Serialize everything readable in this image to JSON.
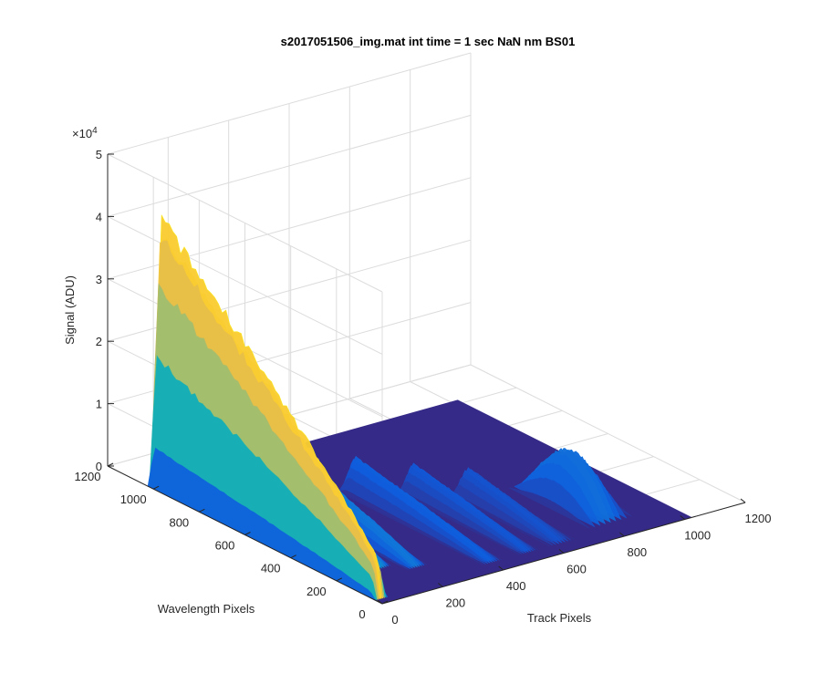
{
  "chart_data": {
    "type": "surface",
    "title": "s2017051506_img.mat int time = 1 sec  NaN nm BS01",
    "xlabel": "Track Pixels",
    "ylabel": "Wavelength Pixels",
    "zlabel": "Signal (ADU)",
    "z_exponent_label": "×10",
    "z_exponent_power": "4",
    "xlim": [
      0,
      1200
    ],
    "ylim": [
      0,
      1200
    ],
    "zlim": [
      0,
      50000
    ],
    "x_ticks": [
      "0",
      "200",
      "400",
      "600",
      "800",
      "1000",
      "1200"
    ],
    "y_ticks": [
      "0",
      "200",
      "400",
      "600",
      "800",
      "1000",
      "1200"
    ],
    "z_ticks": [
      "0",
      "1",
      "2",
      "3",
      "4",
      "5"
    ],
    "grid": true,
    "colormap": "parula",
    "surface_extent": {
      "x": [
        0,
        1024
      ],
      "y": [
        0,
        1024
      ]
    },
    "features": [
      {
        "name": "high-wall",
        "x_range": [
          0,
          40
        ],
        "y_range": [
          30,
          1024
        ],
        "peak_at_y": 1000,
        "peak_z": 43000,
        "end_z": 5000
      },
      {
        "name": "inner-ridge",
        "x_range": [
          40,
          110
        ],
        "y_range": [
          250,
          1000
        ],
        "peak_z": 26000
      },
      {
        "name": "ridge-2",
        "x_range": [
          120,
          180
        ],
        "y_range": [
          200,
          900
        ],
        "peak_z": 14000
      },
      {
        "name": "ridge-3",
        "x_range": [
          200,
          260
        ],
        "y_range": [
          150,
          850
        ],
        "peak_z": 10000
      },
      {
        "name": "far-bump-1",
        "x_range": [
          380,
          440
        ],
        "y_range": [
          60,
          700
        ],
        "peak_z": 6000
      },
      {
        "name": "far-bump-2",
        "x_range": [
          500,
          560
        ],
        "y_range": [
          60,
          600
        ],
        "peak_z": 5000
      },
      {
        "name": "far-bump-3",
        "x_range": [
          600,
          680
        ],
        "y_range": [
          60,
          500
        ],
        "peak_z": 4500
      },
      {
        "name": "far-peak",
        "x_range": [
          760,
          900
        ],
        "y_range": [
          100,
          450
        ],
        "peak_z": 8000
      }
    ]
  }
}
